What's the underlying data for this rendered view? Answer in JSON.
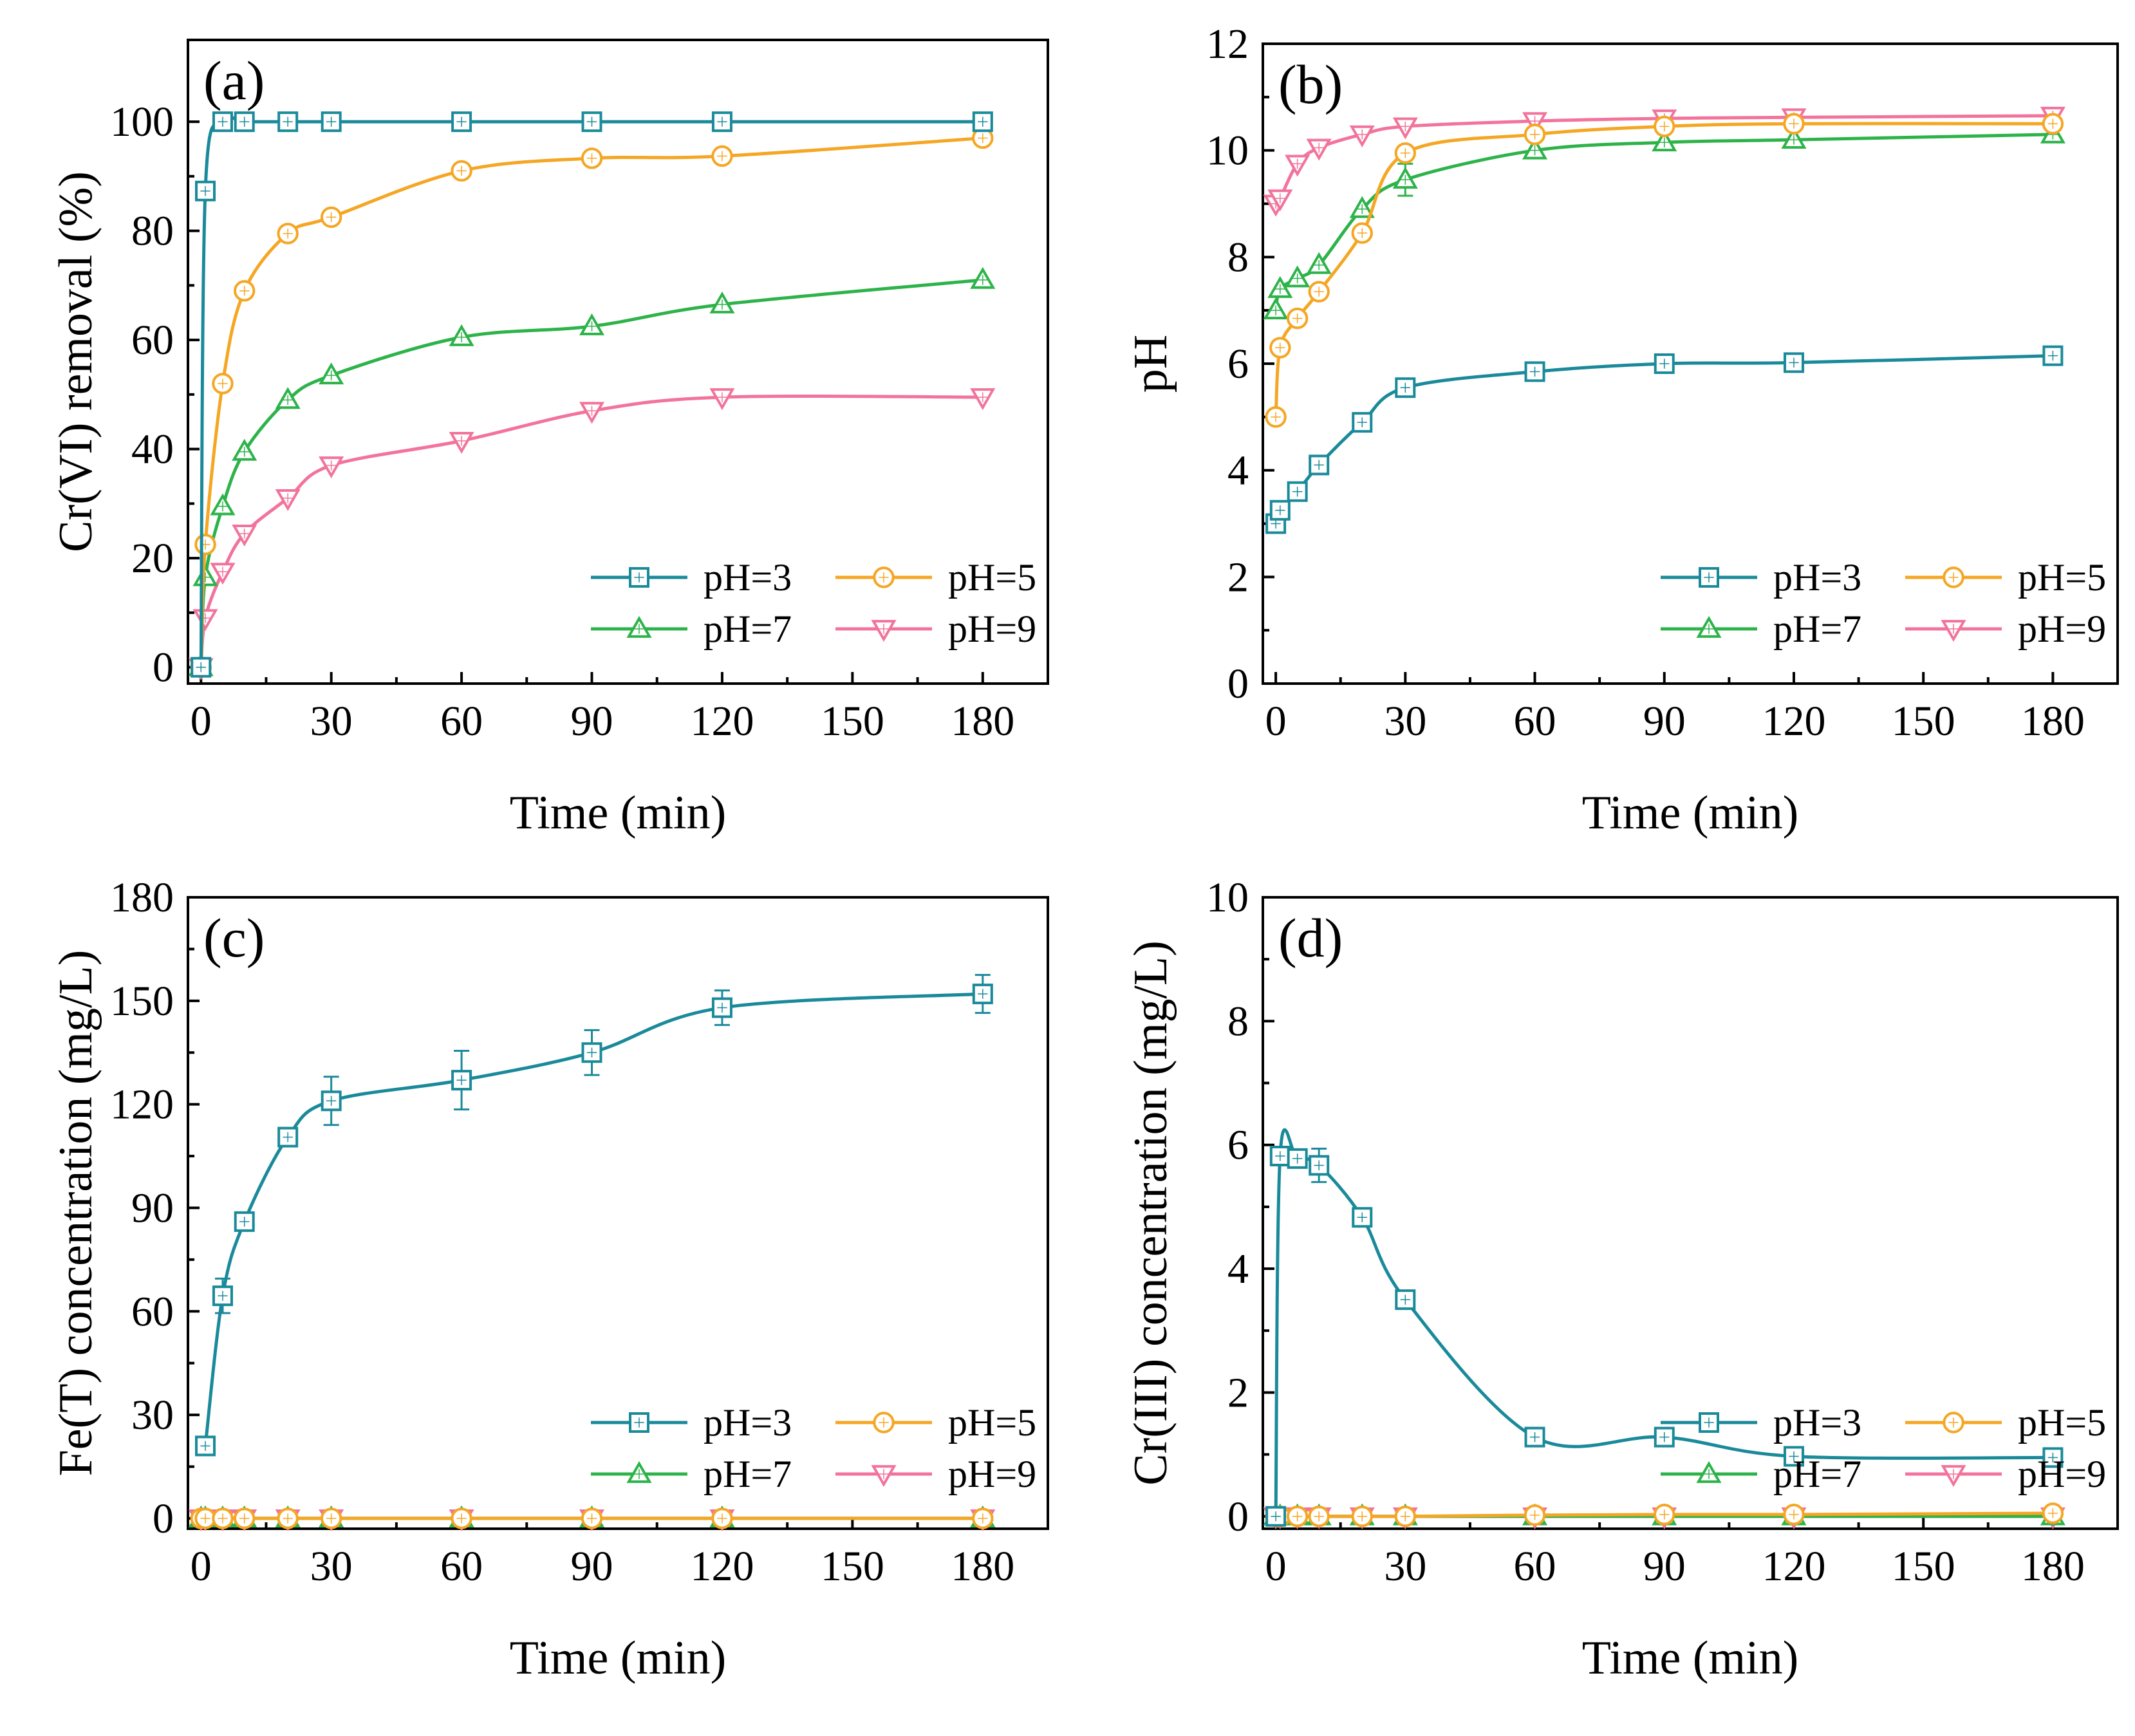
{
  "colors": {
    "pH=3": "#1a8a9a",
    "pH=5": "#f5a623",
    "pH=7": "#2db34a",
    "pH=9": "#f2739c"
  },
  "chart_data": [
    {
      "id": "a",
      "type": "line",
      "panel_label": "(a)",
      "title": "",
      "xlabel": "Time (min)",
      "ylabel": "Cr(VI) removal (%)",
      "xlim": [
        -3,
        195
      ],
      "ylim": [
        -3,
        115
      ],
      "xticks": [
        0,
        30,
        60,
        90,
        120,
        150,
        180
      ],
      "yticks": [
        0,
        20,
        40,
        60,
        80,
        100
      ],
      "legend_position": "bottom-right",
      "series": [
        {
          "name": "pH=3",
          "marker": "square",
          "x": [
            0,
            1,
            5,
            10,
            20,
            30,
            60,
            90,
            120,
            180
          ],
          "y": [
            0,
            87.3,
            100,
            100,
            100,
            100,
            100,
            100,
            100,
            100
          ],
          "err": [
            0,
            0,
            0,
            0,
            0,
            0,
            0,
            0,
            0,
            0
          ]
        },
        {
          "name": "pH=5",
          "marker": "circle",
          "x": [
            0,
            1,
            5,
            10,
            20,
            30,
            60,
            90,
            120,
            180
          ],
          "y": [
            0,
            22.5,
            52,
            69,
            79.5,
            82.5,
            91,
            93.3,
            93.7,
            97
          ],
          "err": [
            0,
            0,
            0,
            0,
            0,
            0,
            0,
            0,
            0,
            0
          ]
        },
        {
          "name": "pH=7",
          "marker": "triangle-up",
          "x": [
            0,
            1,
            5,
            10,
            20,
            30,
            60,
            90,
            120,
            180
          ],
          "y": [
            0,
            16.5,
            29.5,
            39.5,
            49,
            53.5,
            60.5,
            62.5,
            66.5,
            71
          ],
          "err": [
            0,
            0,
            0,
            0,
            0,
            0,
            0,
            0,
            0,
            0
          ]
        },
        {
          "name": "pH=9",
          "marker": "triangle-down",
          "x": [
            0,
            1,
            5,
            10,
            20,
            30,
            60,
            90,
            120,
            180
          ],
          "y": [
            0,
            9,
            17.5,
            24.5,
            31,
            37,
            41.5,
            47,
            49.5,
            49.5
          ],
          "err": [
            0,
            0,
            0,
            0,
            0,
            0,
            0,
            0,
            0,
            0
          ]
        }
      ]
    },
    {
      "id": "b",
      "type": "line",
      "panel_label": "(b)",
      "title": "",
      "xlabel": "Time (min)",
      "ylabel": "pH",
      "xlim": [
        -3,
        195
      ],
      "ylim": [
        0,
        12
      ],
      "xticks": [
        0,
        30,
        60,
        90,
        120,
        150,
        180
      ],
      "yticks": [
        0,
        2,
        4,
        6,
        8,
        10,
        12
      ],
      "legend_position": "bottom-right",
      "series": [
        {
          "name": "pH=3",
          "marker": "square",
          "x": [
            0,
            1,
            5,
            10,
            20,
            30,
            60,
            90,
            120,
            180
          ],
          "y": [
            3.0,
            3.25,
            3.6,
            4.1,
            4.9,
            5.55,
            5.85,
            6.0,
            6.02,
            6.15
          ],
          "err": [
            0,
            0,
            0,
            0,
            0,
            0,
            0,
            0,
            0,
            0
          ]
        },
        {
          "name": "pH=5",
          "marker": "circle",
          "x": [
            0,
            1,
            5,
            10,
            20,
            30,
            60,
            90,
            120,
            180
          ],
          "y": [
            5.0,
            6.3,
            6.85,
            7.35,
            8.45,
            9.95,
            10.3,
            10.45,
            10.5,
            10.5
          ],
          "err": [
            0,
            0,
            0,
            0,
            0,
            0,
            0,
            0,
            0,
            0
          ]
        },
        {
          "name": "pH=7",
          "marker": "triangle-up",
          "x": [
            0,
            1,
            5,
            10,
            20,
            30,
            60,
            90,
            120,
            180
          ],
          "y": [
            7.0,
            7.4,
            7.6,
            7.85,
            8.9,
            9.45,
            10.0,
            10.15,
            10.2,
            10.3
          ],
          "err": [
            0,
            0,
            0,
            0,
            0,
            0.3,
            0,
            0,
            0,
            0
          ]
        },
        {
          "name": "pH=9",
          "marker": "triangle-down",
          "x": [
            0,
            1,
            5,
            10,
            20,
            30,
            60,
            90,
            120,
            180
          ],
          "y": [
            9.0,
            9.1,
            9.75,
            10.05,
            10.3,
            10.45,
            10.55,
            10.6,
            10.62,
            10.65
          ],
          "err": [
            0,
            0,
            0,
            0,
            0,
            0,
            0,
            0,
            0,
            0
          ]
        }
      ]
    },
    {
      "id": "c",
      "type": "line",
      "panel_label": "(c)",
      "title": "",
      "xlabel": "Time (min)",
      "ylabel": "Fe(T) concentration (mg/L)",
      "xlim": [
        -3,
        195
      ],
      "ylim": [
        -3,
        180
      ],
      "xticks": [
        0,
        30,
        60,
        90,
        120,
        150,
        180
      ],
      "yticks": [
        0,
        30,
        60,
        90,
        120,
        150,
        180
      ],
      "legend_position": "bottom-right",
      "series": [
        {
          "name": "pH=3",
          "marker": "square",
          "x": [
            1,
            5,
            10,
            20,
            30,
            60,
            90,
            120,
            180
          ],
          "y": [
            21,
            64.5,
            86,
            110.5,
            121,
            127,
            135,
            148,
            152
          ],
          "err": [
            0,
            5,
            2,
            2,
            7,
            8.5,
            6.5,
            5,
            5.5
          ]
        },
        {
          "name": "pH=5",
          "marker": "circle",
          "x": [
            0,
            1,
            5,
            10,
            20,
            30,
            60,
            90,
            120,
            180
          ],
          "y": [
            0,
            0,
            0,
            0,
            0,
            0,
            0,
            0,
            0,
            0
          ],
          "err": [
            0,
            0,
            0,
            0,
            0,
            0,
            0,
            0,
            0,
            0
          ]
        },
        {
          "name": "pH=7",
          "marker": "triangle-up",
          "x": [
            0,
            1,
            5,
            10,
            20,
            30,
            60,
            90,
            120,
            180
          ],
          "y": [
            0,
            0,
            0,
            0,
            0,
            0,
            0,
            0,
            0,
            0
          ],
          "err": [
            0,
            0,
            0,
            0,
            0,
            0,
            0,
            0,
            0,
            0
          ]
        },
        {
          "name": "pH=9",
          "marker": "triangle-down",
          "x": [
            0,
            1,
            5,
            10,
            20,
            30,
            60,
            90,
            120,
            180
          ],
          "y": [
            0,
            0,
            0,
            0,
            0,
            0,
            0,
            0,
            0,
            0
          ],
          "err": [
            0,
            0,
            0,
            0,
            0,
            0,
            0,
            0,
            0,
            0
          ]
        }
      ]
    },
    {
      "id": "d",
      "type": "line",
      "panel_label": "(d)",
      "title": "",
      "xlabel": "Time (min)",
      "ylabel": "Cr(III) concentration (mg/L)",
      "xlim": [
        -3,
        195
      ],
      "ylim": [
        -0.2,
        10
      ],
      "xticks": [
        0,
        30,
        60,
        90,
        120,
        150,
        180
      ],
      "yticks": [
        0,
        2,
        4,
        6,
        8,
        10
      ],
      "legend_position": "bottom-right",
      "series": [
        {
          "name": "pH=3",
          "marker": "square",
          "x": [
            0,
            1,
            5,
            10,
            20,
            30,
            60,
            90,
            120,
            180
          ],
          "y": [
            0,
            5.82,
            5.78,
            5.67,
            4.83,
            3.5,
            1.28,
            1.28,
            0.97,
            0.95
          ],
          "err": [
            0,
            0,
            0,
            0.27,
            0,
            0,
            0,
            0,
            0,
            0
          ]
        },
        {
          "name": "pH=5",
          "marker": "circle",
          "x": [
            0,
            1,
            5,
            10,
            20,
            30,
            60,
            90,
            120,
            180
          ],
          "y": [
            0,
            0,
            0,
            0,
            0,
            0,
            0.02,
            0.03,
            0.03,
            0.05
          ],
          "err": [
            0,
            0,
            0,
            0,
            0,
            0,
            0,
            0,
            0,
            0
          ]
        },
        {
          "name": "pH=7",
          "marker": "triangle-up",
          "x": [
            0,
            1,
            5,
            10,
            20,
            30,
            60,
            90,
            120,
            180
          ],
          "y": [
            0,
            0,
            0,
            0,
            0,
            0,
            0,
            0,
            0,
            0
          ],
          "err": [
            0,
            0,
            0,
            0,
            0,
            0,
            0,
            0,
            0,
            0
          ]
        },
        {
          "name": "pH=9",
          "marker": "triangle-down",
          "x": [
            0,
            1,
            5,
            10,
            20,
            30,
            60,
            90,
            120,
            180
          ],
          "y": [
            0,
            0,
            0,
            0,
            0,
            0,
            0,
            0,
            0,
            0
          ],
          "err": [
            0,
            0,
            0,
            0,
            0,
            0,
            0,
            0,
            0,
            0
          ]
        }
      ]
    }
  ]
}
